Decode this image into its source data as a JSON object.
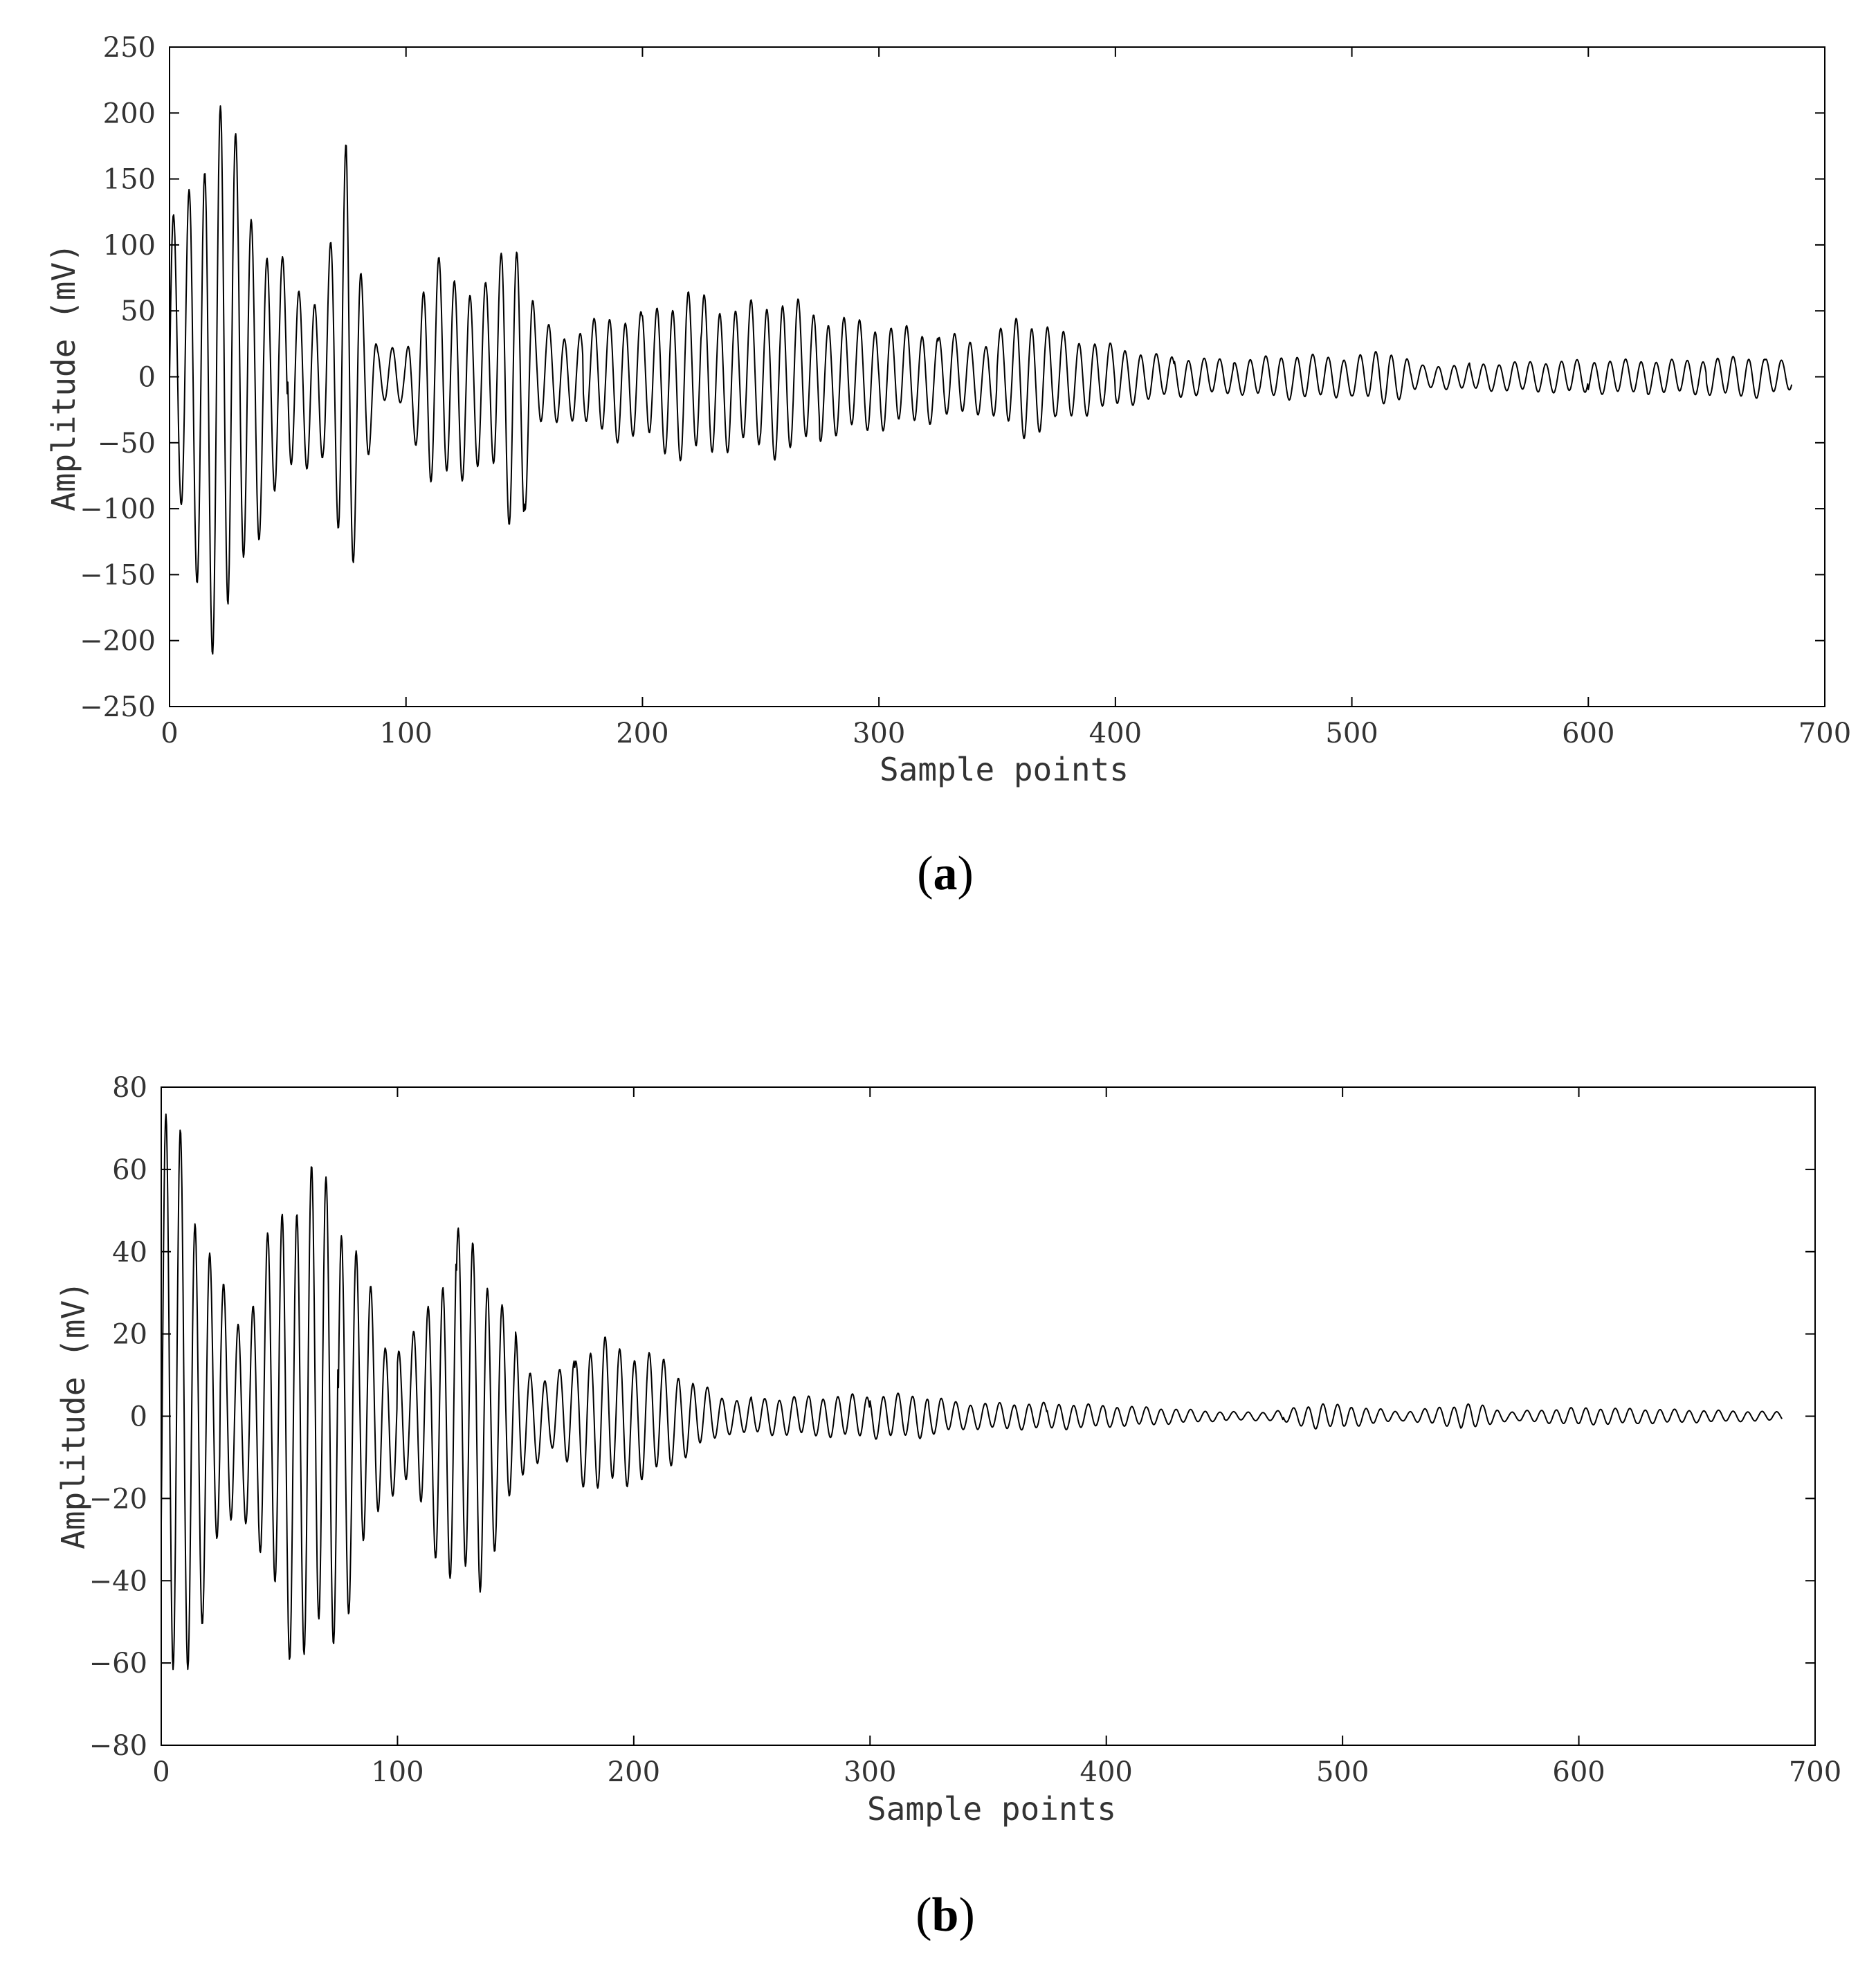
{
  "chart_data": [
    {
      "type": "line",
      "panel_label": "a",
      "xlabel": "Sample points",
      "ylabel": "Amplitude (mV)",
      "xlim": [
        0,
        700
      ],
      "ylim": [
        -250,
        250
      ],
      "xticks": [
        0,
        100,
        200,
        300,
        400,
        500,
        600,
        700
      ],
      "yticks": [
        -250,
        -200,
        -150,
        -100,
        -50,
        0,
        50,
        100,
        150,
        200,
        250
      ],
      "grid": false,
      "line_color": "#000000",
      "series": [
        {
          "x_end": 686,
          "period": 6.6,
          "envelope_points": [
            [
              0,
              120
            ],
            [
              5,
              110
            ],
            [
              15,
              175
            ],
            [
              22,
              210
            ],
            [
              30,
              150
            ],
            [
              40,
              100
            ],
            [
              55,
              65
            ],
            [
              65,
              60
            ],
            [
              75,
              172
            ],
            [
              82,
              75
            ],
            [
              88,
              20
            ],
            [
              100,
              20
            ],
            [
              110,
              85
            ],
            [
              125,
              70
            ],
            [
              135,
              65
            ],
            [
              145,
              112
            ],
            [
              150,
              100
            ],
            [
              155,
              40
            ],
            [
              170,
              30
            ],
            [
              185,
              45
            ],
            [
              200,
              45
            ],
            [
              218,
              62
            ],
            [
              240,
              50
            ],
            [
              260,
              58
            ],
            [
              275,
              45
            ],
            [
              300,
              38
            ],
            [
              330,
              30
            ],
            [
              345,
              25
            ],
            [
              360,
              45
            ],
            [
              380,
              30
            ],
            [
              400,
              22
            ],
            [
              420,
              15
            ],
            [
              450,
              12
            ],
            [
              475,
              16
            ],
            [
              500,
              14
            ],
            [
              515,
              20
            ],
            [
              530,
              8
            ],
            [
              560,
              10
            ],
            [
              600,
              12
            ],
            [
              640,
              12
            ],
            [
              670,
              15
            ],
            [
              686,
              10
            ]
          ]
        }
      ]
    },
    {
      "type": "line",
      "panel_label": "b",
      "xlabel": "Sample points",
      "ylabel": "Amplitude (mV)",
      "xlim": [
        0,
        700
      ],
      "ylim": [
        -80,
        80
      ],
      "xticks": [
        0,
        100,
        200,
        300,
        400,
        500,
        600,
        700
      ],
      "yticks": [
        -80,
        -60,
        -40,
        -20,
        0,
        20,
        40,
        60,
        80
      ],
      "grid": false,
      "line_color": "#000000",
      "series": [
        {
          "x_end": 686,
          "period": 6.2,
          "envelope_points": [
            [
              0,
              68
            ],
            [
              5,
              70
            ],
            [
              10,
              62
            ],
            [
              18,
              45
            ],
            [
              25,
              30
            ],
            [
              35,
              22
            ],
            [
              45,
              40
            ],
            [
              55,
              55
            ],
            [
              65,
              57
            ],
            [
              75,
              52
            ],
            [
              85,
              35
            ],
            [
              95,
              18
            ],
            [
              105,
              16
            ],
            [
              115,
              30
            ],
            [
              125,
              42
            ],
            [
              135,
              40
            ],
            [
              145,
              25
            ],
            [
              155,
              12
            ],
            [
              165,
              8
            ],
            [
              175,
              14
            ],
            [
              185,
              18
            ],
            [
              195,
              16
            ],
            [
              210,
              14
            ],
            [
              225,
              8
            ],
            [
              240,
              4
            ],
            [
              300,
              5
            ],
            [
              320,
              5
            ],
            [
              340,
              3
            ],
            [
              380,
              3
            ],
            [
              420,
              2
            ],
            [
              450,
              1
            ],
            [
              470,
              1
            ],
            [
              490,
              3
            ],
            [
              510,
              2
            ],
            [
              525,
              1
            ],
            [
              555,
              3
            ],
            [
              570,
              1
            ],
            [
              600,
              2
            ],
            [
              686,
              1
            ]
          ]
        }
      ]
    }
  ]
}
